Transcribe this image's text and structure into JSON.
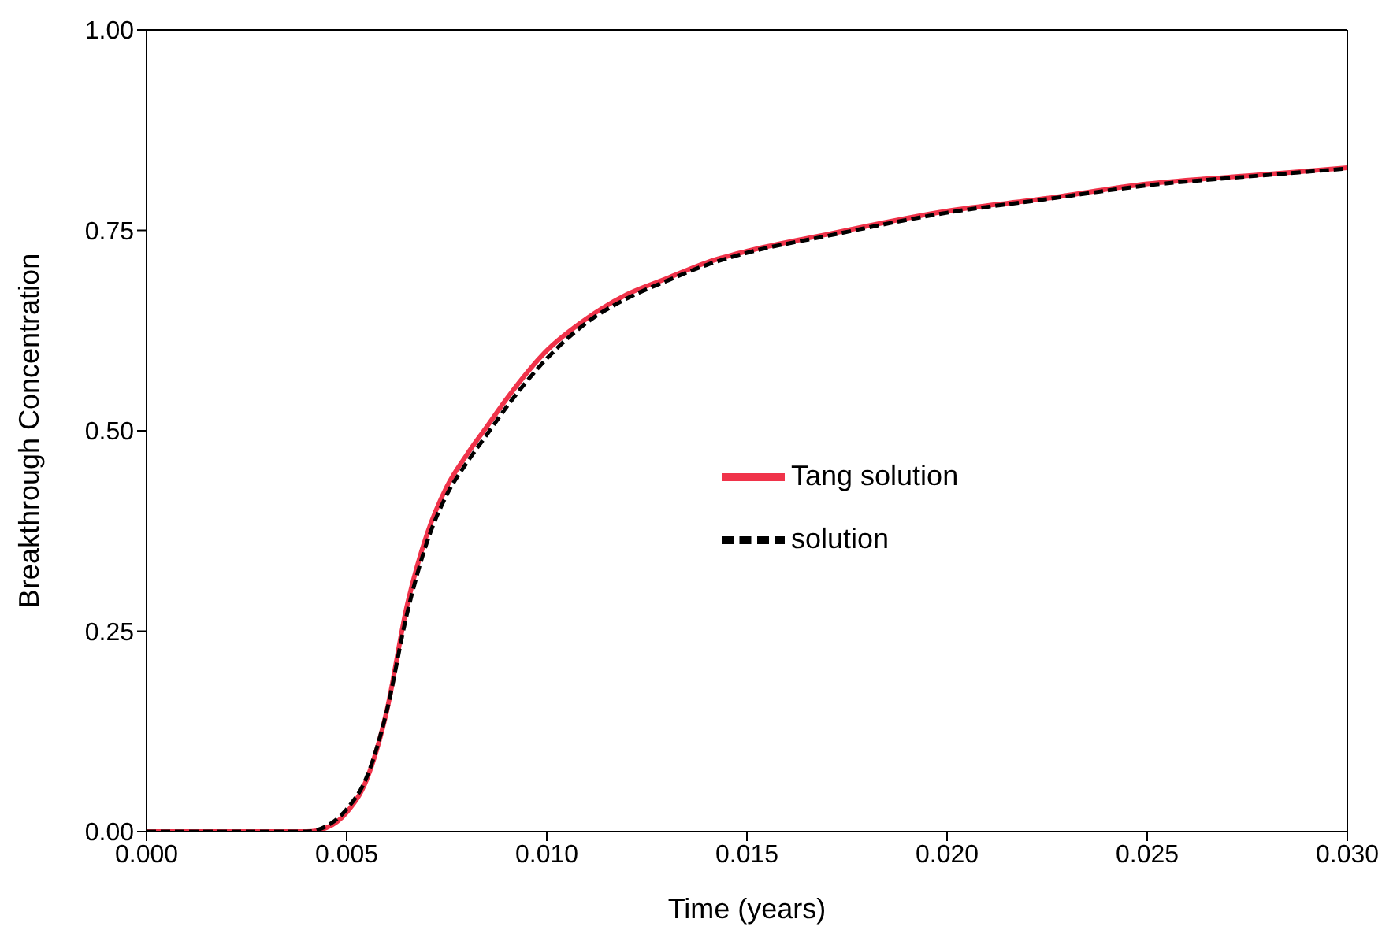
{
  "chart_data": {
    "type": "line",
    "xlabel": "Time (years)",
    "ylabel": "Breakthrough Concentration",
    "xlim": [
      0,
      0.03
    ],
    "ylim": [
      0,
      1
    ],
    "xticks": [
      {
        "value": 0,
        "label": "0.000"
      },
      {
        "value": 0.005,
        "label": "0.005"
      },
      {
        "value": 0.01,
        "label": "0.010"
      },
      {
        "value": 0.015,
        "label": "0.015"
      },
      {
        "value": 0.02,
        "label": "0.020"
      },
      {
        "value": 0.025,
        "label": "0.025"
      },
      {
        "value": 0.03,
        "label": "0.030"
      }
    ],
    "yticks": [
      {
        "value": 0,
        "label": "0.00"
      },
      {
        "value": 0.25,
        "label": "0.25"
      },
      {
        "value": 0.5,
        "label": "0.50"
      },
      {
        "value": 0.75,
        "label": "0.75"
      },
      {
        "value": 1,
        "label": "1.00"
      }
    ],
    "legend": "center",
    "marker": "none",
    "series": [
      {
        "name": "Tang solution",
        "color": "#f0334a",
        "line_style": "solid",
        "x": [
          0,
          0.002,
          0.004,
          0.0045,
          0.005,
          0.0055,
          0.006,
          0.0065,
          0.007,
          0.0075,
          0.008,
          0.0085,
          0.009,
          0.01,
          0.011,
          0.012,
          0.013,
          0.014,
          0.015,
          0.017,
          0.02,
          0.0225,
          0.025,
          0.0275,
          0.03
        ],
        "values": [
          0,
          0,
          0,
          0.005,
          0.024,
          0.065,
          0.15,
          0.28,
          0.37,
          0.43,
          0.47,
          0.505,
          0.54,
          0.6,
          0.64,
          0.67,
          0.69,
          0.71,
          0.724,
          0.745,
          0.774,
          0.79,
          0.808,
          0.818,
          0.828
        ]
      },
      {
        "name": "solution",
        "color": "#000000",
        "line_style": "dashed",
        "x": [
          0,
          0.002,
          0.004,
          0.0045,
          0.005,
          0.0055,
          0.006,
          0.0065,
          0.007,
          0.0075,
          0.008,
          0.0085,
          0.009,
          0.01,
          0.011,
          0.012,
          0.013,
          0.014,
          0.015,
          0.017,
          0.02,
          0.0225,
          0.025,
          0.0275,
          0.03
        ],
        "values": [
          0,
          0,
          0,
          0.007,
          0.028,
          0.068,
          0.15,
          0.27,
          0.36,
          0.42,
          0.46,
          0.495,
          0.53,
          0.59,
          0.635,
          0.665,
          0.687,
          0.707,
          0.722,
          0.743,
          0.772,
          0.789,
          0.806,
          0.817,
          0.827
        ]
      }
    ]
  }
}
